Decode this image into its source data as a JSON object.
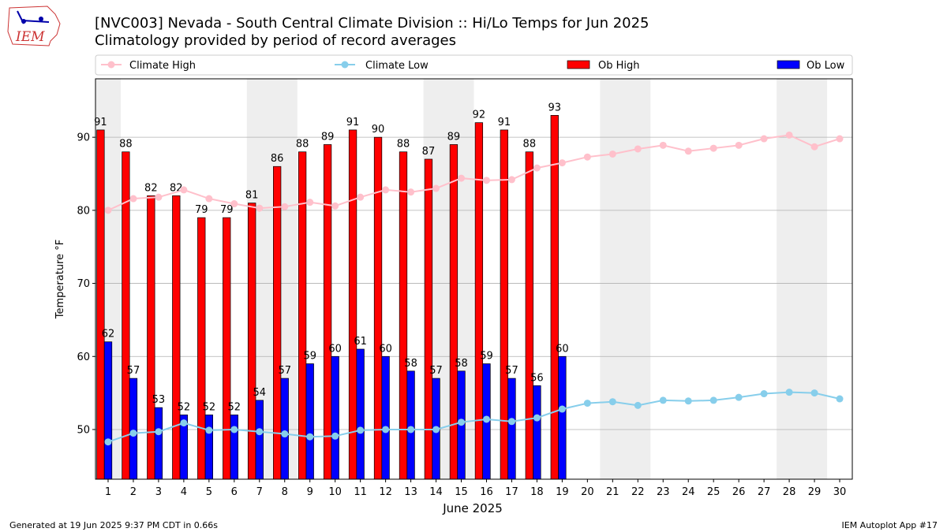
{
  "chart_data": {
    "type": "bar",
    "title": "[NVC003] Nevada - South Central Climate Division :: Hi/Lo Temps for Jun 2025",
    "subtitle": "Climatology provided by period of record averages",
    "x_label": "June 2025",
    "y_label": "Temperature °F",
    "x": [
      1,
      2,
      3,
      4,
      5,
      6,
      7,
      8,
      9,
      10,
      11,
      12,
      13,
      14,
      15,
      16,
      17,
      18,
      19,
      20,
      21,
      22,
      23,
      24,
      25,
      26,
      27,
      28,
      29,
      30
    ],
    "xlim": [
      0.5,
      30.5
    ],
    "xticks": [
      1,
      2,
      3,
      4,
      5,
      6,
      7,
      8,
      9,
      10,
      11,
      12,
      13,
      14,
      15,
      16,
      17,
      18,
      19,
      20,
      21,
      22,
      23,
      24,
      25,
      26,
      27,
      28,
      29,
      30
    ],
    "ylim": [
      43.2,
      98
    ],
    "yticks": [
      50,
      60,
      70,
      80,
      90
    ],
    "grid": true,
    "shaded_spans": [
      [
        0.5,
        1.5
      ],
      [
        6.5,
        8.5
      ],
      [
        13.5,
        15.5
      ],
      [
        20.5,
        22.5
      ],
      [
        27.5,
        29.5
      ]
    ],
    "legend_position": "top",
    "series": [
      {
        "name": "Climate High",
        "type": "line",
        "color": "#ffc0cb",
        "values": [
          80.0,
          81.6,
          81.8,
          82.8,
          81.6,
          80.9,
          80.3,
          80.5,
          81.1,
          80.6,
          81.8,
          82.8,
          82.5,
          83.0,
          84.4,
          84.1,
          84.2,
          85.8,
          86.5,
          87.3,
          87.7,
          88.4,
          88.9,
          88.1,
          88.5,
          88.9,
          89.8,
          90.3,
          88.7,
          89.8
        ]
      },
      {
        "name": "Climate Low",
        "type": "line",
        "color": "#87ceeb",
        "values": [
          48.3,
          49.5,
          49.7,
          50.9,
          49.9,
          50.0,
          49.7,
          49.4,
          49.0,
          49.1,
          49.9,
          50.0,
          50.0,
          50.0,
          51.0,
          51.4,
          51.1,
          51.6,
          52.8,
          53.6,
          53.8,
          53.3,
          54.0,
          53.9,
          54.0,
          54.4,
          54.9,
          55.1,
          55.0,
          54.2
        ]
      },
      {
        "name": "Ob High",
        "type": "bar",
        "color": "#ff0000",
        "values": [
          91,
          88,
          82,
          82,
          79,
          79,
          81,
          86,
          88,
          89,
          91,
          90,
          88,
          87,
          89,
          92,
          91,
          88,
          93,
          null,
          null,
          null,
          null,
          null,
          null,
          null,
          null,
          null,
          null,
          null
        ]
      },
      {
        "name": "Ob Low",
        "type": "bar",
        "color": "#0000ff",
        "values": [
          62,
          57,
          53,
          52,
          52,
          52,
          54,
          57,
          59,
          60,
          61,
          60,
          58,
          57,
          58,
          59,
          57,
          56,
          60,
          null,
          null,
          null,
          null,
          null,
          null,
          null,
          null,
          null,
          null,
          null
        ]
      }
    ],
    "logo_text": "IEM",
    "footer_left": "Generated at 19 Jun 2025 9:37 PM CDT in 0.66s",
    "footer_right": "IEM Autoplot App #17"
  }
}
